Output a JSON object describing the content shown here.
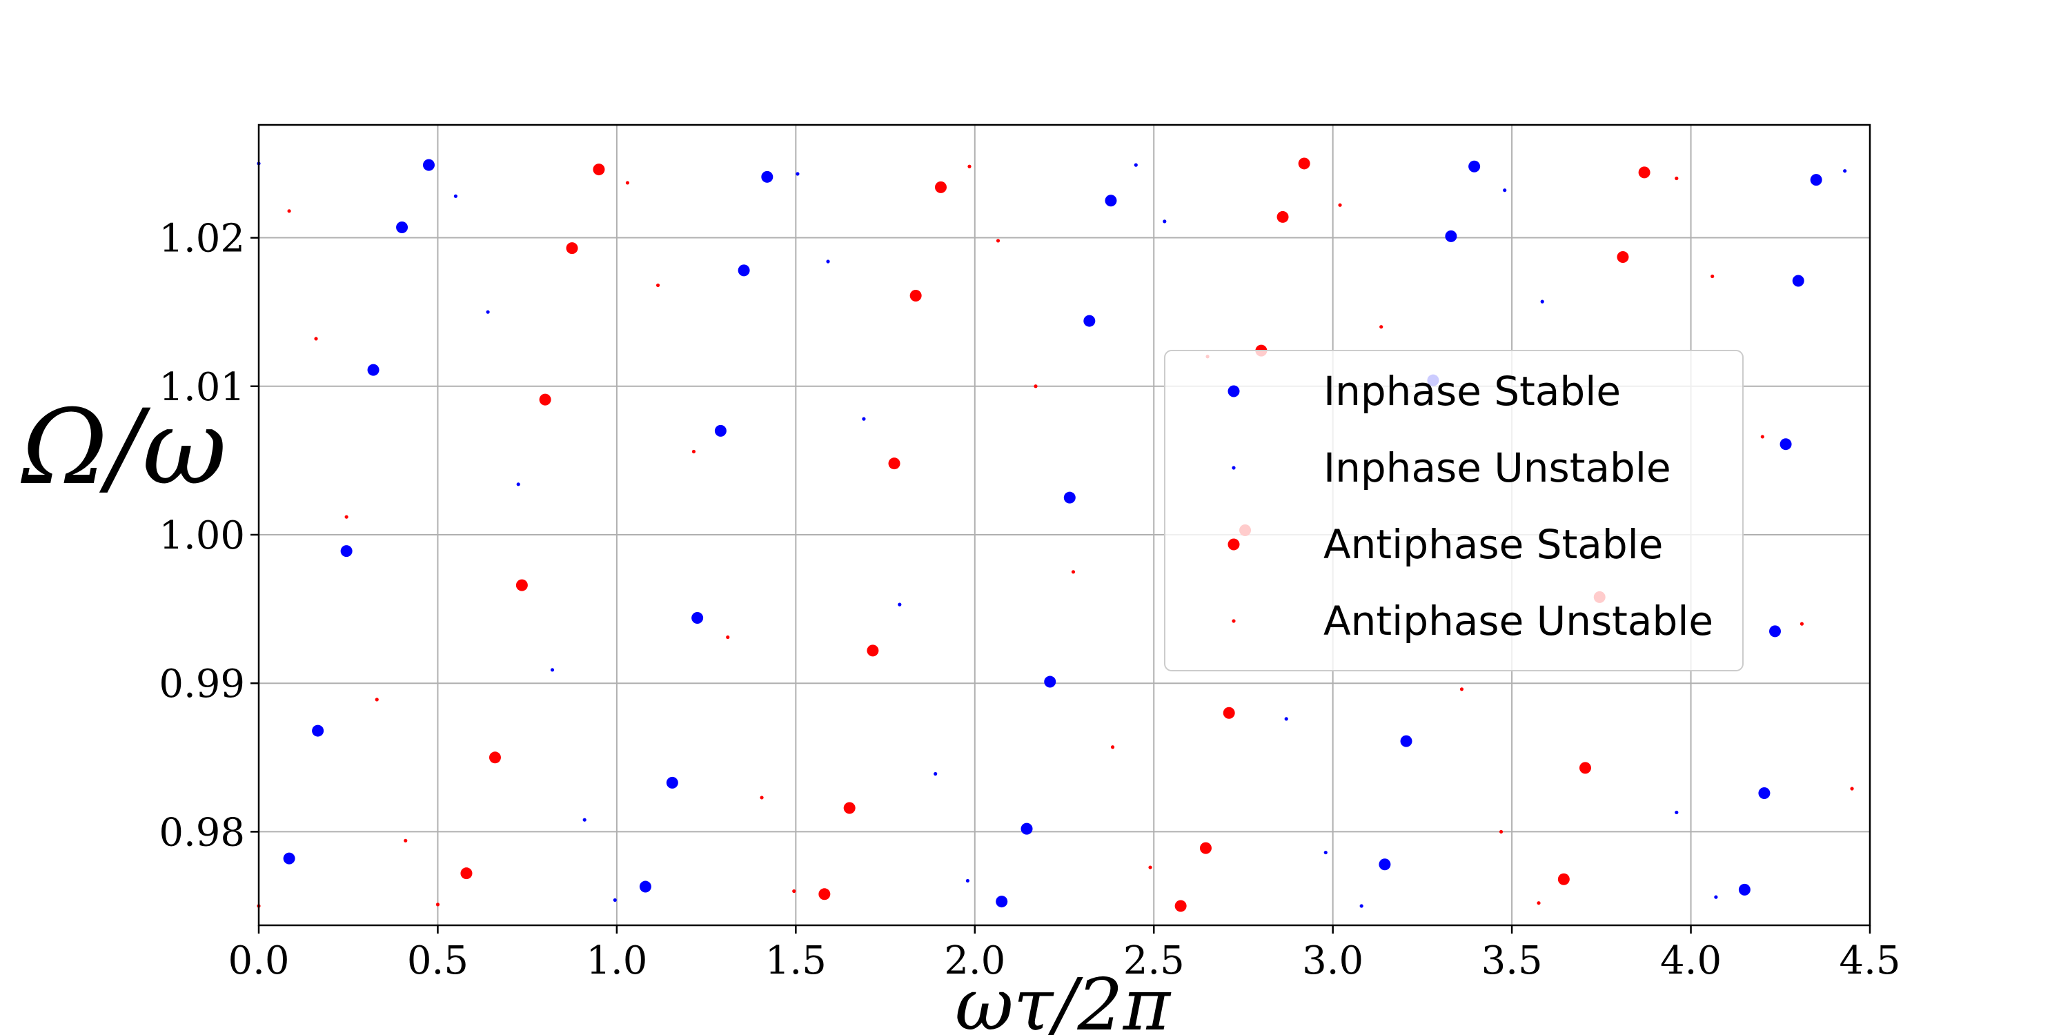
{
  "chart_data": {
    "type": "scatter",
    "xlabel": "ωτ/2π",
    "ylabel": "Ω/ω",
    "xlim": [
      0.0,
      4.5
    ],
    "ylim": [
      0.9737,
      1.0276
    ],
    "xticks": [
      0.0,
      0.5,
      1.0,
      1.5,
      2.0,
      2.5,
      3.0,
      3.5,
      4.0,
      4.5
    ],
    "xtick_labels": [
      "0.0",
      "0.5",
      "1.0",
      "1.5",
      "2.0",
      "2.5",
      "3.0",
      "3.5",
      "4.0",
      "4.5"
    ],
    "yticks": [
      0.98,
      0.99,
      1.0,
      1.01,
      1.02
    ],
    "ytick_labels": [
      "0.98",
      "0.99",
      "1.00",
      "1.01",
      "1.02"
    ],
    "grid": true,
    "legend_position": "right",
    "series": [
      {
        "name": "Inphase Stable",
        "color": "#0000ff",
        "marker": "large-dot",
        "points": [
          {
            "x": 0.085,
            "y": 0.9782
          },
          {
            "x": 0.165,
            "y": 0.9868
          },
          {
            "x": 0.245,
            "y": 0.9989
          },
          {
            "x": 0.32,
            "y": 1.0111
          },
          {
            "x": 0.4,
            "y": 1.0207
          },
          {
            "x": 0.475,
            "y": 1.0249
          },
          {
            "x": 1.08,
            "y": 0.9763
          },
          {
            "x": 1.155,
            "y": 0.9833
          },
          {
            "x": 1.225,
            "y": 0.9944
          },
          {
            "x": 1.29,
            "y": 1.007
          },
          {
            "x": 1.355,
            "y": 1.0178
          },
          {
            "x": 1.42,
            "y": 1.0241
          },
          {
            "x": 2.075,
            "y": 0.9753
          },
          {
            "x": 2.145,
            "y": 0.9802
          },
          {
            "x": 2.21,
            "y": 0.9901
          },
          {
            "x": 2.265,
            "y": 1.0025
          },
          {
            "x": 2.32,
            "y": 1.0144
          },
          {
            "x": 2.38,
            "y": 1.0225
          },
          {
            "x": 3.145,
            "y": 0.9778
          },
          {
            "x": 3.205,
            "y": 0.9861
          },
          {
            "x": 3.28,
            "y": 1.0104
          },
          {
            "x": 3.33,
            "y": 1.0201
          },
          {
            "x": 3.395,
            "y": 1.0248
          },
          {
            "x": 4.15,
            "y": 0.9761
          },
          {
            "x": 4.205,
            "y": 0.9826
          },
          {
            "x": 4.235,
            "y": 0.9935
          },
          {
            "x": 4.265,
            "y": 1.0061
          },
          {
            "x": 4.3,
            "y": 1.0171
          },
          {
            "x": 4.35,
            "y": 1.0239
          }
        ]
      },
      {
        "name": "Inphase Unstable",
        "color": "#0000ff",
        "marker": "small-dot",
        "points": [
          {
            "x": 0.0,
            "y": 1.025
          },
          {
            "x": 0.55,
            "y": 1.0228
          },
          {
            "x": 0.64,
            "y": 1.015
          },
          {
            "x": 0.725,
            "y": 1.0034
          },
          {
            "x": 0.82,
            "y": 0.9909
          },
          {
            "x": 0.91,
            "y": 0.9808
          },
          {
            "x": 0.995,
            "y": 0.9754
          },
          {
            "x": 1.505,
            "y": 1.0243
          },
          {
            "x": 1.59,
            "y": 1.0184
          },
          {
            "x": 1.69,
            "y": 1.0078
          },
          {
            "x": 1.79,
            "y": 0.9953
          },
          {
            "x": 1.89,
            "y": 0.9839
          },
          {
            "x": 1.98,
            "y": 0.9767
          },
          {
            "x": 2.45,
            "y": 1.0249
          },
          {
            "x": 2.53,
            "y": 1.0211
          },
          {
            "x": 2.87,
            "y": 0.9876
          },
          {
            "x": 2.98,
            "y": 0.9786
          },
          {
            "x": 3.08,
            "y": 0.975
          },
          {
            "x": 3.48,
            "y": 1.0232
          },
          {
            "x": 3.585,
            "y": 1.0157
          },
          {
            "x": 3.96,
            "y": 0.9813
          },
          {
            "x": 4.07,
            "y": 0.9756
          },
          {
            "x": 4.43,
            "y": 1.0245
          }
        ]
      },
      {
        "name": "Antiphase Stable",
        "color": "#ff0000",
        "marker": "large-dot",
        "points": [
          {
            "x": 0.58,
            "y": 0.9772
          },
          {
            "x": 0.66,
            "y": 0.985
          },
          {
            "x": 0.735,
            "y": 0.9966
          },
          {
            "x": 0.8,
            "y": 1.0091
          },
          {
            "x": 0.875,
            "y": 1.0193
          },
          {
            "x": 0.95,
            "y": 1.0246
          },
          {
            "x": 1.58,
            "y": 0.9758
          },
          {
            "x": 1.65,
            "y": 0.9816
          },
          {
            "x": 1.715,
            "y": 0.9922
          },
          {
            "x": 1.775,
            "y": 1.0048
          },
          {
            "x": 1.835,
            "y": 1.0161
          },
          {
            "x": 1.905,
            "y": 1.0234
          },
          {
            "x": 2.575,
            "y": 0.975
          },
          {
            "x": 2.645,
            "y": 0.9789
          },
          {
            "x": 2.71,
            "y": 0.988
          },
          {
            "x": 2.755,
            "y": 1.0003
          },
          {
            "x": 2.8,
            "y": 1.0124
          },
          {
            "x": 2.86,
            "y": 1.0214
          },
          {
            "x": 2.92,
            "y": 1.025
          },
          {
            "x": 3.645,
            "y": 0.9768
          },
          {
            "x": 3.705,
            "y": 0.9843
          },
          {
            "x": 3.745,
            "y": 0.9958
          },
          {
            "x": 3.81,
            "y": 1.0187
          },
          {
            "x": 3.87,
            "y": 1.0244
          }
        ]
      },
      {
        "name": "Antiphase Unstable",
        "color": "#ff0000",
        "marker": "small-dot",
        "points": [
          {
            "x": 0.0,
            "y": 0.975
          },
          {
            "x": 0.085,
            "y": 1.0218
          },
          {
            "x": 0.16,
            "y": 1.0132
          },
          {
            "x": 0.245,
            "y": 1.0012
          },
          {
            "x": 0.33,
            "y": 0.9889
          },
          {
            "x": 0.41,
            "y": 0.9794
          },
          {
            "x": 0.5,
            "y": 0.9751
          },
          {
            "x": 1.03,
            "y": 1.0237
          },
          {
            "x": 1.115,
            "y": 1.0168
          },
          {
            "x": 1.215,
            "y": 1.0056
          },
          {
            "x": 1.31,
            "y": 0.9931
          },
          {
            "x": 1.405,
            "y": 0.9823
          },
          {
            "x": 1.495,
            "y": 0.976
          },
          {
            "x": 1.985,
            "y": 1.0248
          },
          {
            "x": 2.065,
            "y": 1.0198
          },
          {
            "x": 2.17,
            "y": 1.01
          },
          {
            "x": 2.275,
            "y": 0.9975
          },
          {
            "x": 2.385,
            "y": 0.9857
          },
          {
            "x": 2.49,
            "y": 0.9776
          },
          {
            "x": 2.65,
            "y": 1.012
          },
          {
            "x": 3.02,
            "y": 1.0222
          },
          {
            "x": 3.135,
            "y": 1.014
          },
          {
            "x": 3.36,
            "y": 0.9896
          },
          {
            "x": 3.47,
            "y": 0.98
          },
          {
            "x": 3.575,
            "y": 0.9752
          },
          {
            "x": 3.96,
            "y": 1.024
          },
          {
            "x": 4.06,
            "y": 1.0174
          },
          {
            "x": 4.2,
            "y": 1.0066
          },
          {
            "x": 4.31,
            "y": 0.994
          },
          {
            "x": 4.45,
            "y": 0.9829
          }
        ]
      }
    ]
  }
}
